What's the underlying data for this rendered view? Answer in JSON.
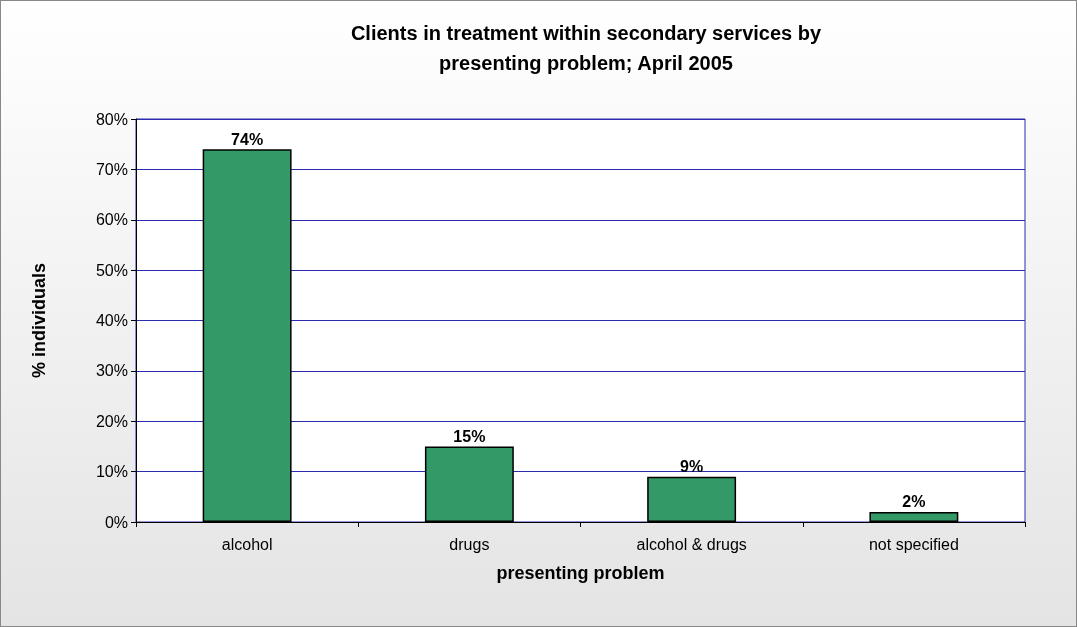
{
  "chart_data": {
    "type": "bar",
    "title": "Clients in treatment within secondary services by\npresenting problem; April 2005",
    "xlabel": "presenting problem",
    "ylabel": "% individuals",
    "categories": [
      "alcohol",
      "drugs",
      "alcohol & drugs",
      "not specified"
    ],
    "values": [
      74,
      15,
      9,
      2
    ],
    "value_labels": [
      "74%",
      "15%",
      "9%",
      "2%"
    ],
    "color": "#339966",
    "ylim": [
      0,
      80
    ],
    "yticks": [
      {
        "value": 0,
        "label": "0%"
      },
      {
        "value": 10,
        "label": "10%"
      },
      {
        "value": 20,
        "label": "20%"
      },
      {
        "value": 30,
        "label": "30%"
      },
      {
        "value": 40,
        "label": "40%"
      },
      {
        "value": 50,
        "label": "50%"
      },
      {
        "value": 60,
        "label": "60%"
      },
      {
        "value": 70,
        "label": "70%"
      },
      {
        "value": 80,
        "label": "80%"
      }
    ],
    "grid": "y"
  }
}
